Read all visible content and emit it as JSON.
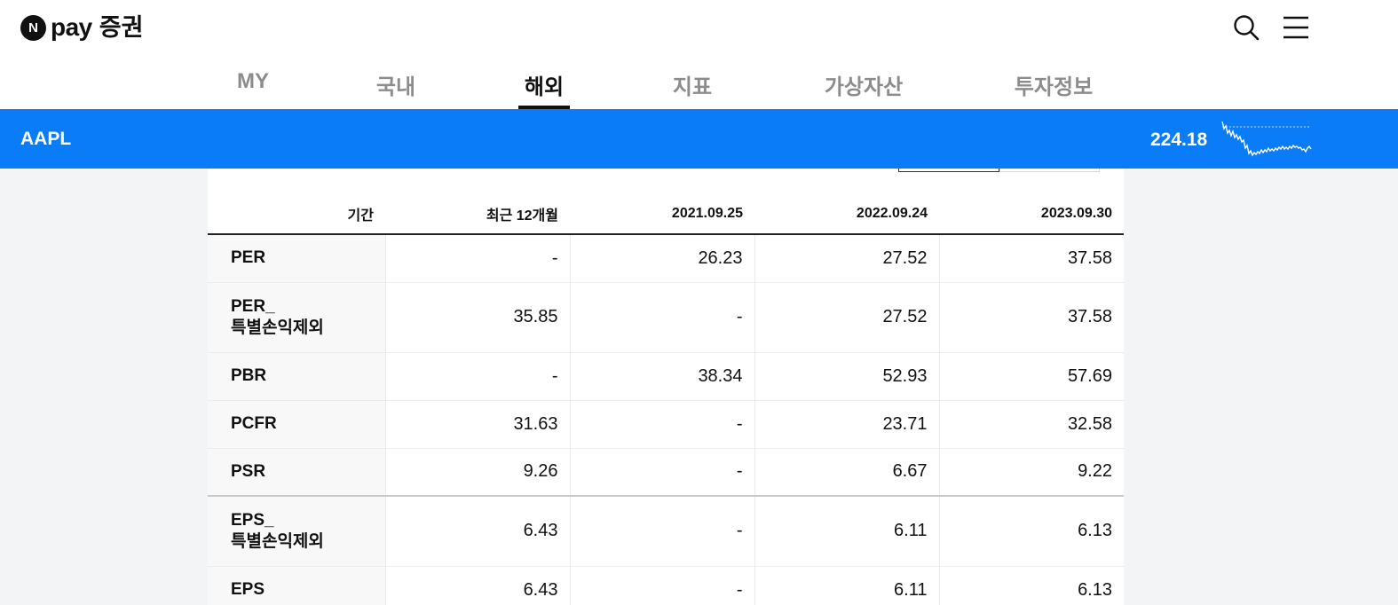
{
  "header": {
    "logo_badge": "N",
    "logo_pay": "pay",
    "logo_securities": "증권"
  },
  "nav": {
    "tabs": [
      {
        "label": "MY"
      },
      {
        "label": "국내"
      },
      {
        "label": "해외"
      },
      {
        "label": "지표"
      },
      {
        "label": "가상자산"
      },
      {
        "label": "투자정보"
      }
    ],
    "active": "해외"
  },
  "stock": {
    "symbol": "AAPL",
    "price": "224.18"
  },
  "table": {
    "columns": [
      "기간",
      "최근 12개월",
      "2021.09.25",
      "2022.09.24",
      "2023.09.30"
    ],
    "rows": [
      {
        "label": "PER",
        "values": [
          "-",
          "26.23",
          "27.52",
          "37.58"
        ]
      },
      {
        "label_line1": "PER_",
        "label_line2": "특별손익제외",
        "values": [
          "35.85",
          "-",
          "27.52",
          "37.58"
        ]
      },
      {
        "label": "PBR",
        "values": [
          "-",
          "38.34",
          "52.93",
          "57.69"
        ]
      },
      {
        "label": "PCFR",
        "values": [
          "31.63",
          "-",
          "23.71",
          "32.58"
        ]
      },
      {
        "label": "PSR",
        "values": [
          "9.26",
          "-",
          "6.67",
          "9.22"
        ]
      },
      {
        "label_line1": "EPS_",
        "label_line2": "특별손익제외",
        "values": [
          "6.43",
          "-",
          "6.11",
          "6.13"
        ]
      },
      {
        "label": "EPS",
        "values": [
          "6.43",
          "-",
          "6.11",
          "6.13"
        ]
      }
    ]
  }
}
